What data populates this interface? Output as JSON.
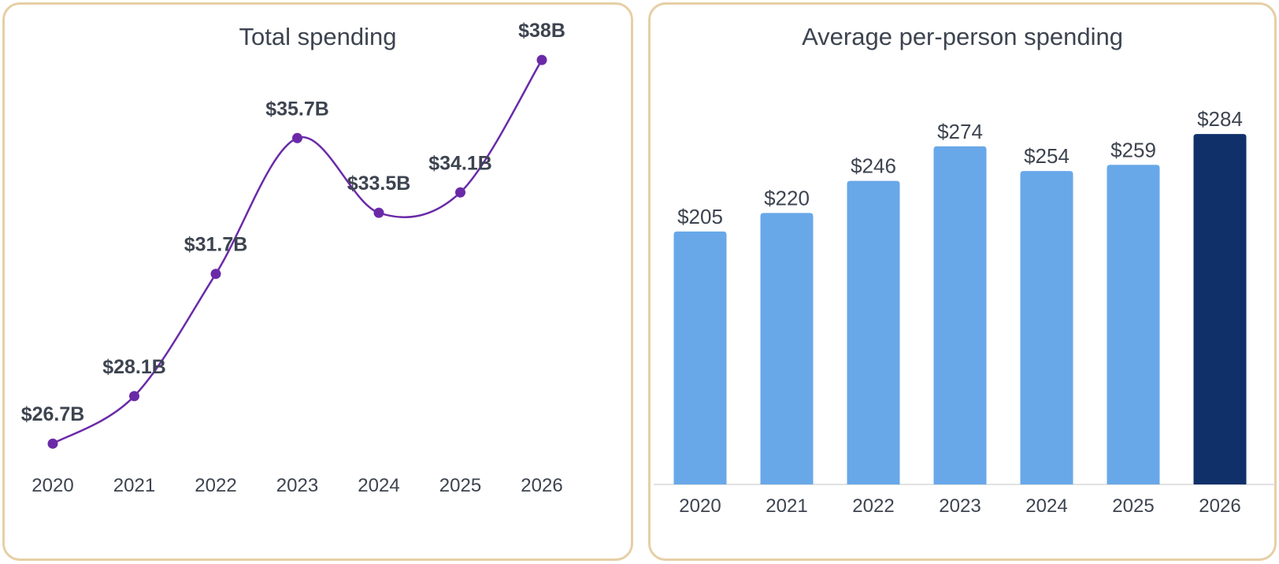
{
  "chart_data": [
    {
      "type": "line",
      "title": "Total spending",
      "categories": [
        "2020",
        "2021",
        "2022",
        "2023",
        "2024",
        "2025",
        "2026"
      ],
      "values": [
        26.7,
        28.1,
        31.7,
        35.7,
        33.5,
        34.1,
        38
      ],
      "data_labels": [
        "$26.7B",
        "$28.1B",
        "$31.7B",
        "$35.7B",
        "$33.5B",
        "$34.1B",
        "$38B"
      ],
      "color": "#6a2aa8",
      "smooth": true,
      "ylim": [
        25.8,
        38.7
      ],
      "grid": false,
      "legend": "none"
    },
    {
      "type": "bar",
      "title": "Average per-person spending",
      "categories": [
        "2020",
        "2021",
        "2022",
        "2023",
        "2024",
        "2025",
        "2026"
      ],
      "values": [
        205,
        220,
        246,
        274,
        254,
        259,
        284
      ],
      "data_labels": [
        "$205",
        "$220",
        "$246",
        "$274",
        "$254",
        "$259",
        "$284"
      ],
      "colors": [
        "#68a8e8",
        "#68a8e8",
        "#68a8e8",
        "#68a8e8",
        "#68a8e8",
        "#68a8e8",
        "#10306a"
      ],
      "ylim": [
        0,
        293
      ],
      "grid": false,
      "legend": "none"
    }
  ],
  "colors": {
    "panel_border": "#e6cfa6",
    "text": "#3d4450",
    "axis_line": "#d9d9d9"
  }
}
